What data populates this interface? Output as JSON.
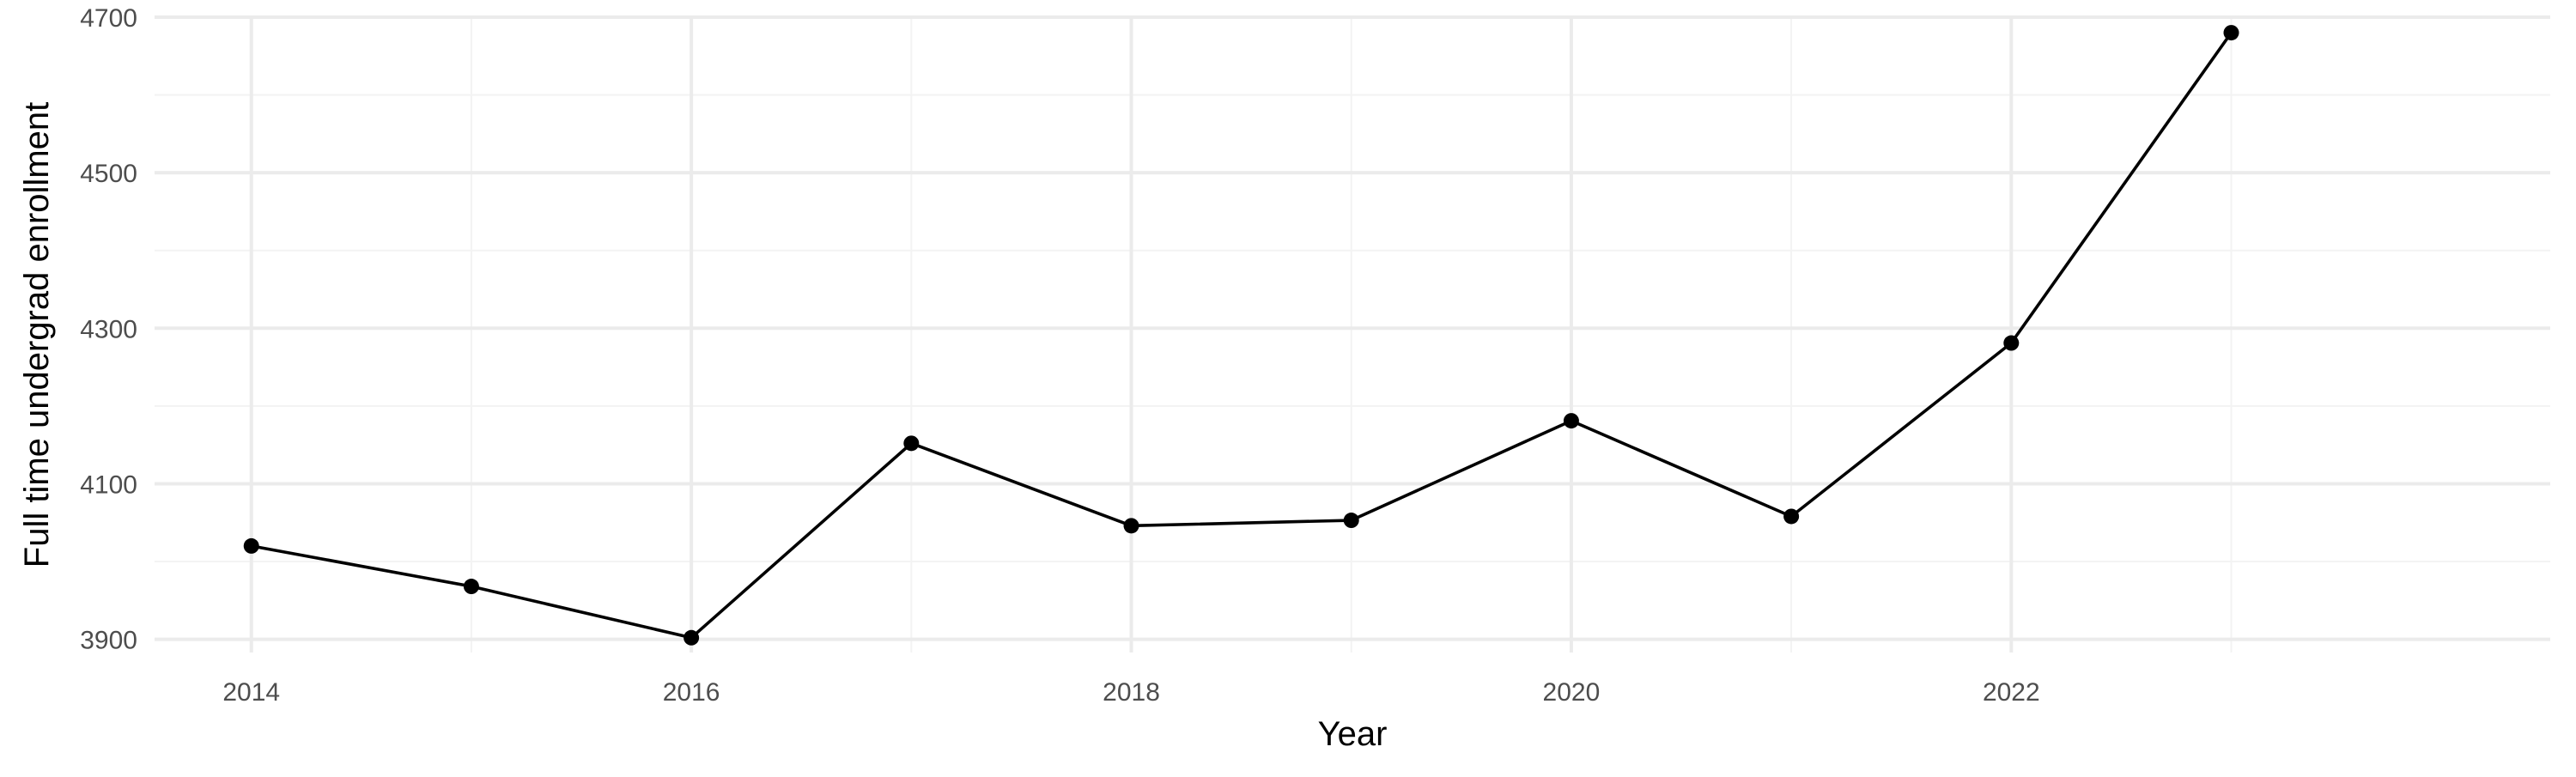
{
  "chart_data": {
    "type": "line",
    "title": "",
    "xlabel": "Year",
    "ylabel": "Full time undergrad enrollment",
    "x": [
      2014,
      2015,
      2016,
      2017,
      2018,
      2019,
      2020,
      2021,
      2022,
      2023
    ],
    "series": [
      {
        "values": [
          4020,
          3968,
          3902,
          4152,
          4046,
          4053,
          4181,
          4058,
          4281,
          4680
        ]
      }
    ],
    "xlim": [
      2013.56,
      2024.45
    ],
    "ylim": [
      3883,
      4700
    ],
    "x_ticks": [
      2014,
      2016,
      2018,
      2020,
      2022
    ],
    "x_tick_labels": [
      "2014",
      "2016",
      "2018",
      "2020",
      "2022"
    ],
    "x_minor_ticks": [
      2015,
      2017,
      2019,
      2021,
      2023
    ],
    "y_ticks": [
      3900,
      4100,
      4300,
      4500,
      4700
    ],
    "y_tick_labels": [
      "3900",
      "4100",
      "4300",
      "4500",
      "4700"
    ],
    "y_minor_ticks": [
      4000,
      4200,
      4400,
      4600
    ],
    "grid": true,
    "legend": "none",
    "colors": {
      "line": "#000000",
      "point": "#000000",
      "grid_major": "#ebebeb",
      "grid_minor": "#f3f3f3",
      "tick_text": "#4d4d4d",
      "axis_title": "#000000",
      "background": "#ffffff"
    }
  }
}
